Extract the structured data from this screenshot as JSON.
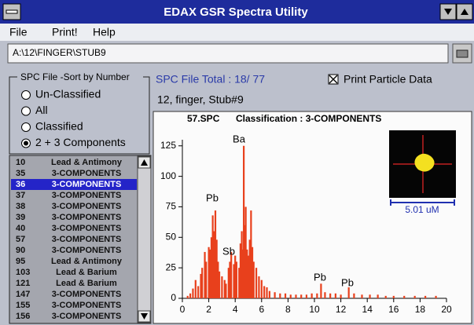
{
  "window": {
    "title": "EDAX GSR Spectra Utility",
    "menu": [
      "File",
      "Print!",
      "Help"
    ],
    "path": "A:\\12\\FINGER\\STUB9"
  },
  "sort_group": {
    "title": "SPC File -Sort by Number",
    "options": [
      "Un-Classified",
      "All",
      "Classified",
      "2 + 3 Components"
    ],
    "selected": 3
  },
  "file_list": {
    "items": [
      {
        "num": 10,
        "label": "Lead & Antimony"
      },
      {
        "num": 35,
        "label": "3-COMPONENTS"
      },
      {
        "num": 36,
        "label": "3-COMPONENTS"
      },
      {
        "num": 37,
        "label": "3-COMPONENTS"
      },
      {
        "num": 38,
        "label": "3-COMPONENTS"
      },
      {
        "num": 39,
        "label": "3-COMPONENTS"
      },
      {
        "num": 40,
        "label": "3-COMPONENTS"
      },
      {
        "num": 57,
        "label": "3-COMPONENTS"
      },
      {
        "num": 90,
        "label": "3-COMPONENTS"
      },
      {
        "num": 95,
        "label": "Lead & Antimony"
      },
      {
        "num": 103,
        "label": "Lead & Barium"
      },
      {
        "num": 121,
        "label": "Lead & Barium"
      },
      {
        "num": 147,
        "label": "3-COMPONENTS"
      },
      {
        "num": 155,
        "label": "3-COMPONENTS"
      },
      {
        "num": 156,
        "label": "3-COMPONENTS"
      }
    ],
    "selected": 2
  },
  "file_total": "SPC File Total : 18/ 77",
  "print_particle": {
    "label": "Print Particle Data",
    "checked": true
  },
  "sample": "12, finger, Stub#9",
  "chart_data": {
    "type": "spectrum",
    "title": "57.SPC",
    "subtitle": "Classification : 3-COMPONENTS",
    "x": [
      0.4,
      0.6,
      0.8,
      1.0,
      1.2,
      1.4,
      1.5,
      1.7,
      1.8,
      2.0,
      2.1,
      2.2,
      2.3,
      2.4,
      2.5,
      2.6,
      2.7,
      2.8,
      3.0,
      3.2,
      3.3,
      3.5,
      3.6,
      3.7,
      3.9,
      4.0,
      4.1,
      4.3,
      4.4,
      4.5,
      4.6,
      4.65,
      4.75,
      4.8,
      4.9,
      5.0,
      5.1,
      5.2,
      5.3,
      5.4,
      5.6,
      5.8,
      6.0,
      6.2,
      6.4,
      6.6,
      7.0,
      7.4,
      7.8,
      8.2,
      8.6,
      9.0,
      9.4,
      9.8,
      10.2,
      10.5,
      10.8,
      11.2,
      11.6,
      12.0,
      12.6,
      13.0,
      13.6,
      14.2,
      14.8,
      15.4,
      16.0,
      16.8,
      17.6,
      18.4,
      19.2
    ],
    "values": [
      2,
      4,
      8,
      15,
      10,
      20,
      25,
      38,
      30,
      42,
      40,
      50,
      68,
      55,
      72,
      48,
      30,
      22,
      18,
      15,
      12,
      25,
      30,
      38,
      28,
      35,
      30,
      25,
      45,
      55,
      40,
      125,
      60,
      75,
      40,
      35,
      48,
      72,
      42,
      30,
      25,
      18,
      15,
      10,
      9,
      6,
      5,
      4,
      4,
      3,
      3,
      3,
      3,
      4,
      4,
      12,
      5,
      4,
      4,
      3,
      9,
      4,
      3,
      3,
      3,
      2,
      2,
      2,
      2,
      2,
      2
    ],
    "color": "#e8401c",
    "xlim": [
      0,
      20
    ],
    "ylim": [
      0,
      130
    ],
    "xticks": [
      0,
      2,
      4,
      6,
      8,
      10,
      12,
      14,
      16,
      18,
      20
    ],
    "yticks": [
      0,
      25,
      50,
      75,
      100,
      125
    ],
    "annotations": [
      "Ba",
      "Pb",
      "Sb",
      "Pb",
      "Pb"
    ],
    "scale_label": "5.01 uM"
  }
}
